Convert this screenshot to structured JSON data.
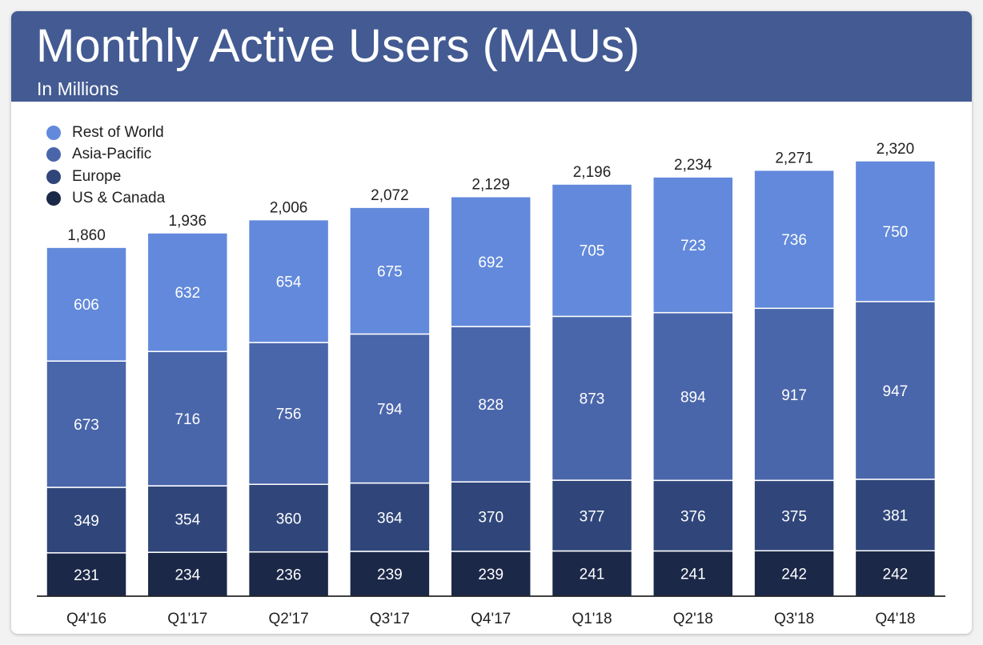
{
  "header": {
    "title": "Monthly Active Users (MAUs)",
    "subtitle": "In Millions"
  },
  "colors": {
    "header_bg": "#435a92",
    "US & Canada": "#1b2848",
    "Europe": "#30467a",
    "Asia-Pacific": "#4a66aa",
    "Rest of World": "#6289db"
  },
  "chart_data": {
    "type": "bar",
    "stacked": true,
    "title": "Monthly Active Users (MAUs)",
    "subtitle": "In Millions",
    "categories": [
      "Q4'16",
      "Q1'17",
      "Q2'17",
      "Q3'17",
      "Q4'17",
      "Q1'18",
      "Q2'18",
      "Q3'18",
      "Q4'18"
    ],
    "series": [
      {
        "name": "US & Canada",
        "values": [
          231,
          234,
          236,
          239,
          239,
          241,
          241,
          242,
          242
        ]
      },
      {
        "name": "Europe",
        "values": [
          349,
          354,
          360,
          364,
          370,
          377,
          376,
          375,
          381
        ]
      },
      {
        "name": "Asia-Pacific",
        "values": [
          673,
          716,
          756,
          794,
          828,
          873,
          894,
          917,
          947
        ]
      },
      {
        "name": "Rest of World",
        "values": [
          606,
          632,
          654,
          675,
          692,
          705,
          723,
          736,
          750
        ]
      }
    ],
    "totals": [
      "1,860",
      "1,936",
      "2,006",
      "2,072",
      "2,129",
      "2,196",
      "2,234",
      "2,271",
      "2,320"
    ],
    "legend": {
      "position": "top-left",
      "order": [
        "Rest of World",
        "Asia-Pacific",
        "Europe",
        "US & Canada"
      ]
    },
    "ylim": [
      0,
      2320
    ],
    "grid": false
  }
}
